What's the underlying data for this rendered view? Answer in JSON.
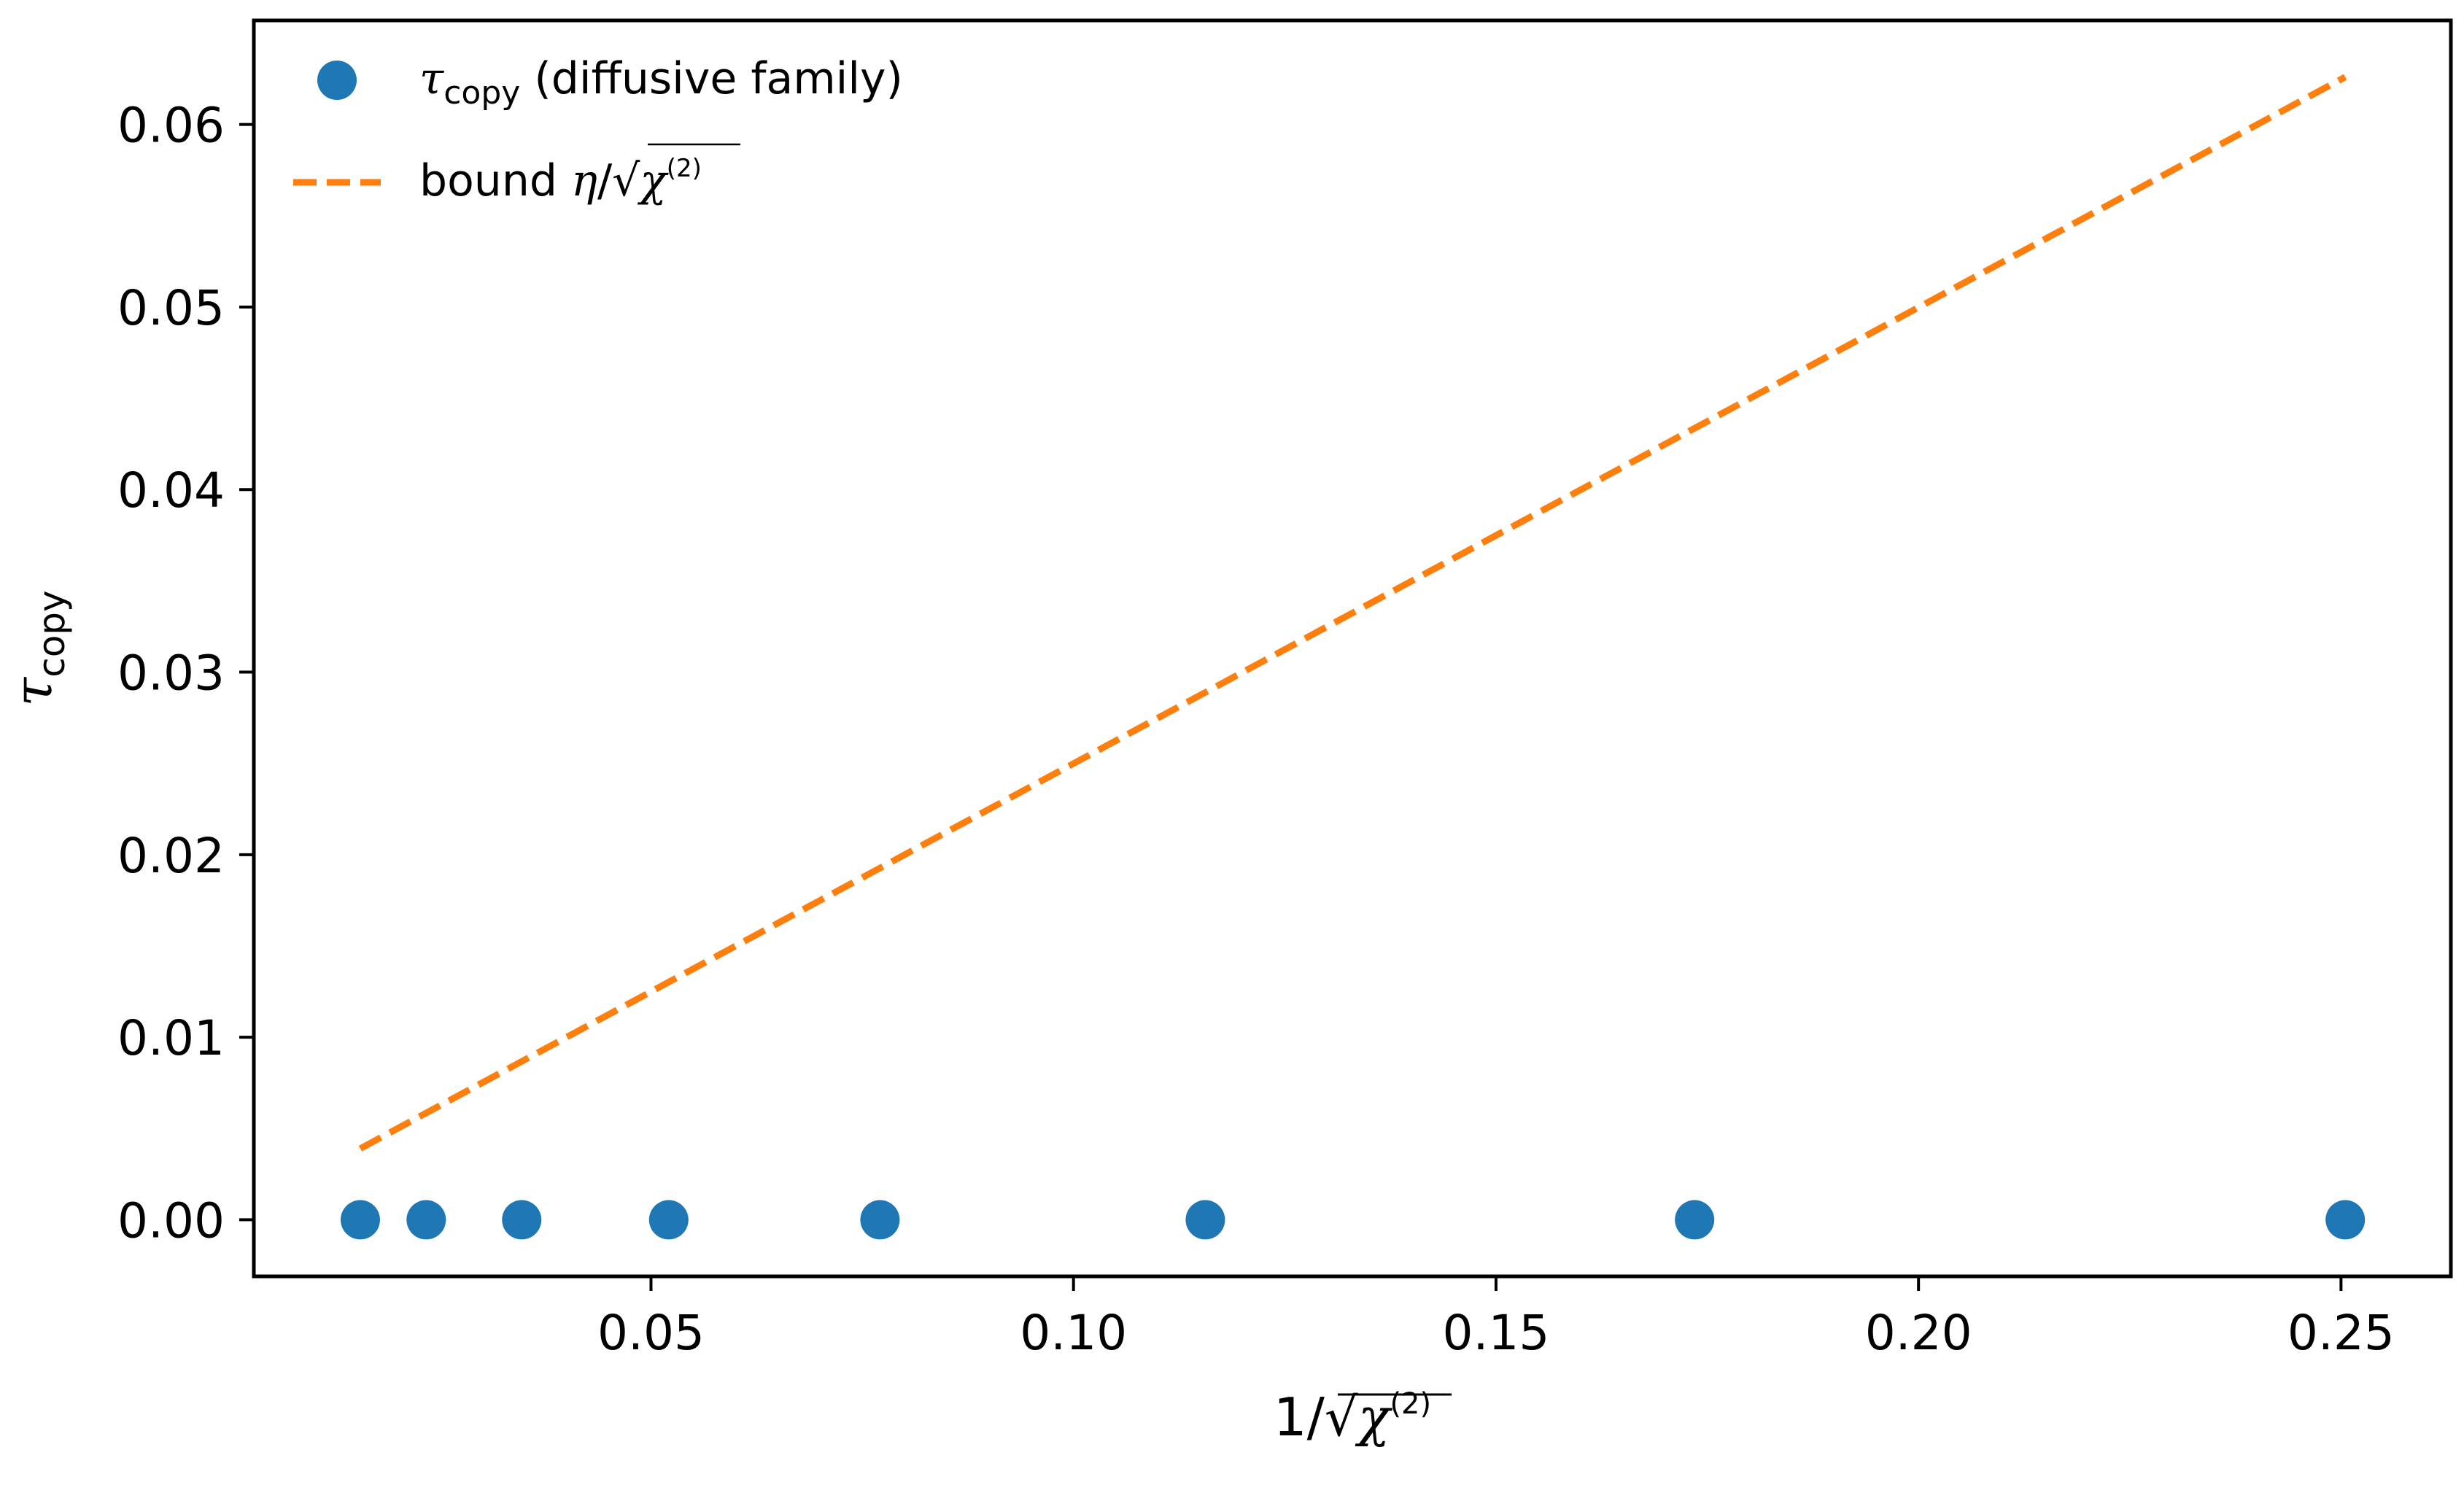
{
  "chart_data": {
    "type": "scatter",
    "xlabel": {
      "prefix": "1/√",
      "symbol": "χ",
      "superscript": "(2)"
    },
    "ylabel": {
      "symbol": "τ",
      "subscript": "copy"
    },
    "xlim": [
      0.003,
      0.263
    ],
    "ylim": [
      -0.0031,
      0.0657
    ],
    "x_ticks": [
      0.05,
      0.1,
      0.15,
      0.2,
      0.25
    ],
    "x_tick_labels": [
      "0.05",
      "0.10",
      "0.15",
      "0.20",
      "0.25"
    ],
    "y_ticks": [
      0.0,
      0.01,
      0.02,
      0.03,
      0.04,
      0.05,
      0.06
    ],
    "y_tick_labels": [
      "0.00",
      "0.01",
      "0.02",
      "0.03",
      "0.04",
      "0.05",
      "0.06"
    ],
    "grid": false,
    "legend_position": "top-left",
    "series": [
      {
        "name": "τcopy (diffusive family)",
        "legend": {
          "symbol": "τ",
          "subscript": "copy",
          "text": " (diffusive family)"
        },
        "type": "scatter",
        "color": "#1f77b4",
        "x": [
          0.0156,
          0.0234,
          0.0347,
          0.0521,
          0.0771,
          0.1156,
          0.1735,
          0.2505
        ],
        "y": [
          0.0,
          0.0,
          0.0,
          0.0,
          0.0,
          0.0,
          0.0,
          0.0
        ]
      },
      {
        "name": "bound η/√χ(2)",
        "legend": {
          "text": "bound ",
          "symbol": "η",
          "mid": "/√",
          "symbol2": "χ",
          "superscript": "(2)"
        },
        "type": "line",
        "style": "dashed",
        "color": "#ff7f0e",
        "x": [
          0.0156,
          0.2505
        ],
        "y": [
          0.0039,
          0.0626
        ]
      }
    ]
  }
}
